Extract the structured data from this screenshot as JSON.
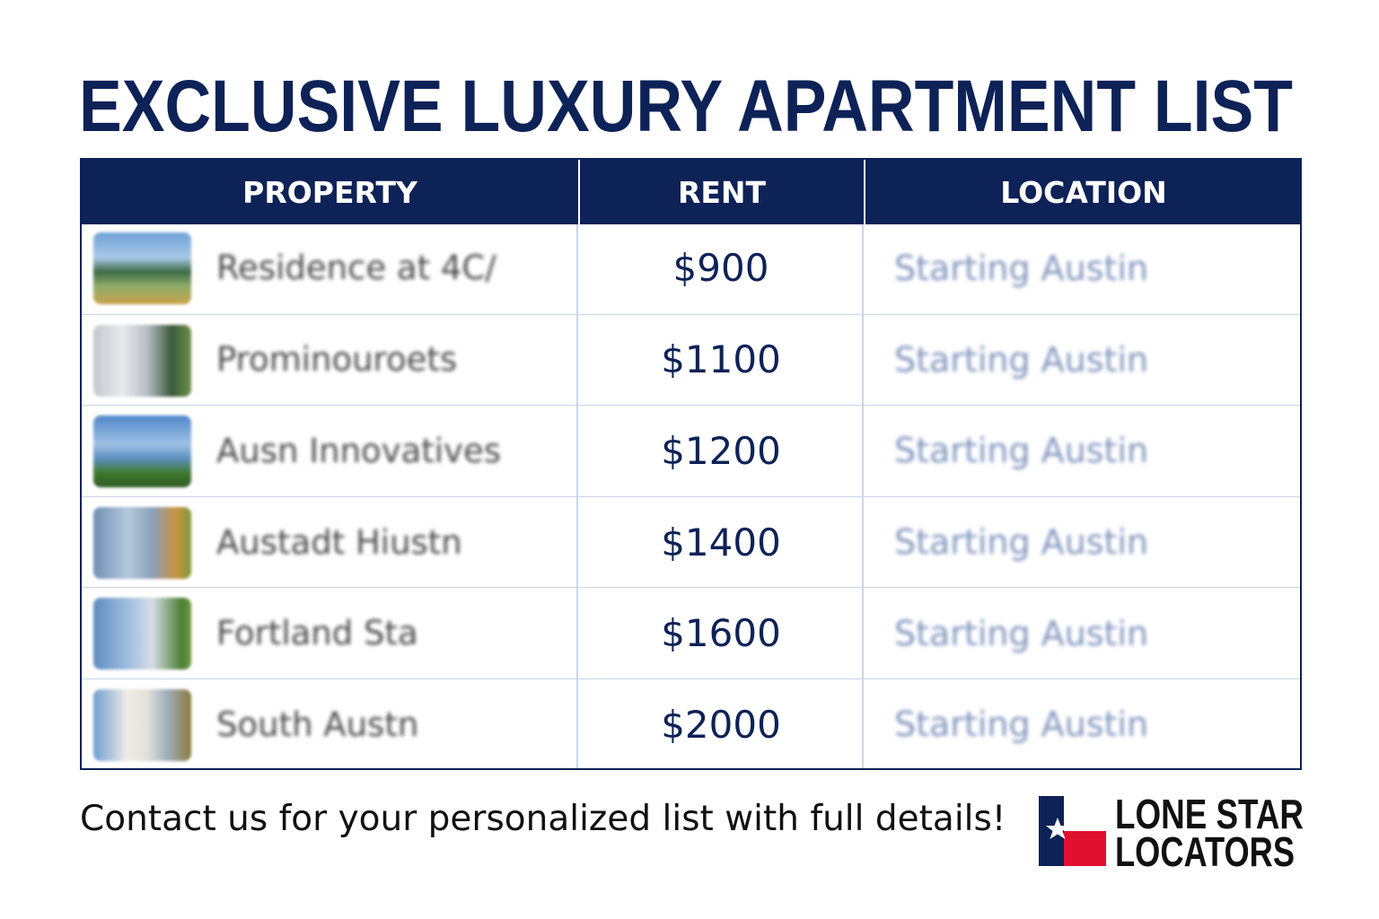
{
  "header": {
    "title": "EXCLUSIVE LUXURY APARTMENT LIST"
  },
  "table": {
    "headers": [
      "PROPERTY",
      "RENT",
      "LOCATION"
    ],
    "rows": [
      [
        "Residence at 4C/",
        "$900",
        "Starting Austin"
      ],
      [
        "Prominouroets",
        "$1100",
        "Starting Austin"
      ],
      [
        "Ausn Innovatives",
        "$1200",
        "Starting Austin"
      ],
      [
        "Austadt Hiustn",
        "$1400",
        "Starting Austin"
      ],
      [
        "Fortland Sta",
        "$1600",
        "Starting Austin"
      ],
      [
        "South Austn",
        "$2000",
        "Starting Austin"
      ]
    ]
  },
  "footer": {
    "contact": "Contact us for your personalized list with full details!",
    "logo": [
      "LONE STAR",
      "LOCATORS"
    ]
  }
}
